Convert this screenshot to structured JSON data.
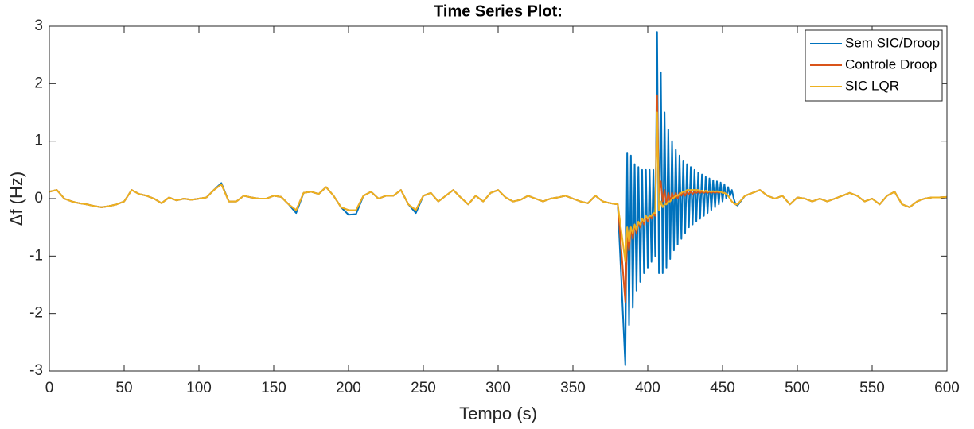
{
  "chart_data": {
    "type": "line",
    "title": "Time Series Plot:",
    "x_label": "Tempo (s)",
    "y_label": "Δf (Hz)",
    "xlim": [
      0,
      600
    ],
    "xticks": [
      0,
      50,
      100,
      150,
      200,
      250,
      300,
      350,
      400,
      450,
      500,
      550,
      600
    ],
    "ylim": [
      -3,
      3
    ],
    "yticks": [
      -3,
      -2,
      -1,
      0,
      1,
      2,
      3
    ],
    "grid": false,
    "legend": "upper right",
    "x": [
      0,
      5,
      10,
      15,
      20,
      25,
      30,
      35,
      40,
      45,
      50,
      55,
      60,
      65,
      70,
      75,
      80,
      85,
      90,
      95,
      100,
      105,
      110,
      115,
      120,
      125,
      130,
      135,
      140,
      145,
      150,
      155,
      160,
      165,
      170,
      175,
      180,
      185,
      190,
      195,
      200,
      205,
      210,
      215,
      220,
      225,
      230,
      235,
      240,
      245,
      250,
      255,
      260,
      265,
      270,
      275,
      280,
      285,
      290,
      295,
      300,
      305,
      310,
      315,
      320,
      325,
      330,
      335,
      340,
      345,
      350,
      355,
      360,
      365,
      370,
      375,
      380,
      385,
      386.25,
      387.5,
      388.75,
      390,
      391.25,
      392.5,
      393.75,
      395,
      396.25,
      397.5,
      398.75,
      400,
      401.25,
      402.5,
      403.75,
      405,
      406.25,
      407.5,
      408.75,
      410,
      411.25,
      412.5,
      413.75,
      415,
      416.25,
      417.5,
      418.75,
      420,
      421.25,
      422.5,
      423.75,
      425,
      426.25,
      427.5,
      428.75,
      430,
      431.25,
      432.5,
      433.75,
      435,
      436.25,
      437.5,
      438.75,
      440,
      441.25,
      442.5,
      443.75,
      445,
      446.25,
      447.5,
      448.75,
      450,
      451.25,
      452.5,
      453.75,
      455,
      456.25,
      457.5,
      458.75,
      460,
      465,
      470,
      475,
      480,
      485,
      490,
      495,
      500,
      505,
      510,
      515,
      520,
      525,
      530,
      535,
      540,
      545,
      550,
      555,
      560,
      565,
      570,
      575,
      580,
      585,
      590,
      595,
      600
    ],
    "series": [
      {
        "name": "Sem SIC/Droop",
        "color": "#0072bd",
        "values": [
          0.12,
          0.15,
          0.0,
          -0.05,
          -0.08,
          -0.1,
          -0.13,
          -0.15,
          -0.13,
          -0.1,
          -0.05,
          0.15,
          0.08,
          0.05,
          0.0,
          -0.08,
          0.02,
          -0.03,
          0.0,
          -0.02,
          0.0,
          0.02,
          0.15,
          0.27,
          -0.05,
          -0.05,
          0.05,
          0.02,
          0.0,
          0.0,
          0.05,
          0.03,
          -0.1,
          -0.25,
          0.1,
          0.12,
          0.08,
          0.2,
          0.05,
          -0.15,
          -0.28,
          -0.27,
          0.05,
          0.12,
          0.0,
          0.05,
          0.05,
          0.15,
          -0.1,
          -0.25,
          0.05,
          0.1,
          -0.05,
          0.05,
          0.15,
          0.02,
          -0.1,
          0.05,
          -0.05,
          0.1,
          0.15,
          0.02,
          -0.05,
          -0.02,
          0.05,
          0.0,
          -0.05,
          0.0,
          0.02,
          0.05,
          0.0,
          -0.05,
          -0.08,
          0.05,
          -0.05,
          -0.08,
          -0.1,
          -2.9,
          0.8,
          -2.2,
          0.75,
          -1.9,
          0.6,
          -1.6,
          0.55,
          -1.45,
          0.5,
          -1.3,
          0.5,
          -1.2,
          0.5,
          -1.1,
          0.5,
          -1.0,
          2.9,
          -1.3,
          2.2,
          -1.3,
          1.5,
          -1.2,
          1.2,
          -1.05,
          1.0,
          -0.9,
          0.85,
          -0.8,
          0.75,
          -0.7,
          0.65,
          -0.6,
          0.6,
          -0.5,
          0.55,
          -0.45,
          0.5,
          -0.4,
          0.45,
          -0.35,
          0.42,
          -0.3,
          0.38,
          -0.25,
          0.35,
          -0.2,
          0.32,
          -0.15,
          0.3,
          -0.1,
          0.28,
          -0.05,
          0.25,
          0.0,
          0.2,
          0.05,
          0.15,
          0.0,
          -0.1,
          -0.12,
          0.05,
          0.1,
          0.15,
          0.05,
          0.0,
          0.05,
          -0.1,
          0.02,
          0.0,
          -0.05,
          0.0,
          -0.05,
          0.0,
          0.05,
          0.1,
          0.05,
          -0.05,
          0.0,
          -0.1,
          0.05,
          0.12,
          -0.1,
          -0.15,
          -0.05,
          0.0,
          0.02,
          0.02,
          0.03
        ]
      },
      {
        "name": "Controle Droop",
        "color": "#d95319",
        "values": [
          0.12,
          0.15,
          0.0,
          -0.05,
          -0.08,
          -0.1,
          -0.13,
          -0.15,
          -0.13,
          -0.1,
          -0.05,
          0.15,
          0.08,
          0.05,
          0.0,
          -0.08,
          0.02,
          -0.03,
          0.0,
          -0.02,
          0.0,
          0.02,
          0.15,
          0.25,
          -0.05,
          -0.05,
          0.05,
          0.02,
          0.0,
          0.0,
          0.05,
          0.03,
          -0.1,
          -0.2,
          0.1,
          0.12,
          0.08,
          0.2,
          0.05,
          -0.15,
          -0.2,
          -0.2,
          0.05,
          0.12,
          0.0,
          0.05,
          0.05,
          0.15,
          -0.1,
          -0.2,
          0.05,
          0.1,
          -0.05,
          0.05,
          0.15,
          0.02,
          -0.1,
          0.05,
          -0.05,
          0.1,
          0.15,
          0.02,
          -0.05,
          -0.02,
          0.05,
          0.0,
          -0.05,
          0.0,
          0.02,
          0.05,
          0.0,
          -0.05,
          -0.08,
          0.05,
          -0.05,
          -0.08,
          -0.1,
          -1.8,
          -0.6,
          -0.9,
          -0.5,
          -0.7,
          -0.45,
          -0.6,
          -0.4,
          -0.5,
          -0.35,
          -0.45,
          -0.3,
          -0.4,
          -0.3,
          -0.35,
          -0.25,
          -0.3,
          1.8,
          0.1,
          0.3,
          -0.05,
          0.15,
          -0.1,
          0.1,
          -0.05,
          0.1,
          0.0,
          0.1,
          0.0,
          0.1,
          0.05,
          0.12,
          0.05,
          0.12,
          0.08,
          0.12,
          0.08,
          0.12,
          0.1,
          0.12,
          0.1,
          0.12,
          0.1,
          0.12,
          0.1,
          0.12,
          0.1,
          0.12,
          0.1,
          0.12,
          0.1,
          0.12,
          0.1,
          0.1,
          0.08,
          0.05,
          0.0,
          -0.05,
          -0.08,
          -0.1,
          -0.1,
          0.05,
          0.1,
          0.15,
          0.05,
          0.0,
          0.05,
          -0.1,
          0.02,
          0.0,
          -0.05,
          0.0,
          -0.05,
          0.0,
          0.05,
          0.1,
          0.05,
          -0.05,
          0.0,
          -0.1,
          0.05,
          0.12,
          -0.1,
          -0.15,
          -0.05,
          0.0,
          0.02,
          0.02,
          0.03
        ]
      },
      {
        "name": "SIC LQR",
        "color": "#edb120",
        "values": [
          0.12,
          0.15,
          0.0,
          -0.05,
          -0.08,
          -0.1,
          -0.13,
          -0.15,
          -0.13,
          -0.1,
          -0.05,
          0.15,
          0.08,
          0.05,
          0.0,
          -0.08,
          0.02,
          -0.03,
          0.0,
          -0.02,
          0.0,
          0.02,
          0.15,
          0.25,
          -0.05,
          -0.05,
          0.05,
          0.02,
          0.0,
          0.0,
          0.05,
          0.03,
          -0.1,
          -0.2,
          0.1,
          0.12,
          0.08,
          0.2,
          0.05,
          -0.15,
          -0.2,
          -0.2,
          0.05,
          0.12,
          0.0,
          0.05,
          0.05,
          0.15,
          -0.1,
          -0.2,
          0.05,
          0.1,
          -0.05,
          0.05,
          0.15,
          0.02,
          -0.1,
          0.05,
          -0.05,
          0.1,
          0.15,
          0.02,
          -0.05,
          -0.02,
          0.05,
          0.0,
          -0.05,
          0.0,
          0.02,
          0.05,
          0.0,
          -0.05,
          -0.08,
          0.05,
          -0.05,
          -0.08,
          -0.1,
          -1.1,
          -0.5,
          -0.75,
          -0.5,
          -0.6,
          -0.45,
          -0.55,
          -0.4,
          -0.45,
          -0.35,
          -0.4,
          -0.3,
          -0.35,
          -0.3,
          -0.3,
          -0.25,
          -0.25,
          1.5,
          -0.2,
          -0.05,
          -0.15,
          -0.1,
          -0.1,
          -0.05,
          -0.05,
          0.0,
          0.02,
          0.05,
          0.05,
          0.08,
          0.1,
          0.12,
          0.12,
          0.15,
          0.15,
          0.15,
          0.15,
          0.15,
          0.15,
          0.15,
          0.13,
          0.14,
          0.12,
          0.14,
          0.12,
          0.13,
          0.12,
          0.13,
          0.12,
          0.13,
          0.12,
          0.12,
          0.1,
          0.1,
          0.08,
          0.05,
          0.0,
          -0.05,
          -0.08,
          -0.1,
          -0.1,
          0.05,
          0.1,
          0.15,
          0.05,
          0.0,
          0.05,
          -0.1,
          0.02,
          0.0,
          -0.05,
          0.0,
          -0.05,
          0.0,
          0.05,
          0.1,
          0.05,
          -0.05,
          0.0,
          -0.1,
          0.05,
          0.12,
          -0.1,
          -0.15,
          -0.05,
          0.0,
          0.02,
          0.02,
          0.03
        ]
      }
    ]
  }
}
